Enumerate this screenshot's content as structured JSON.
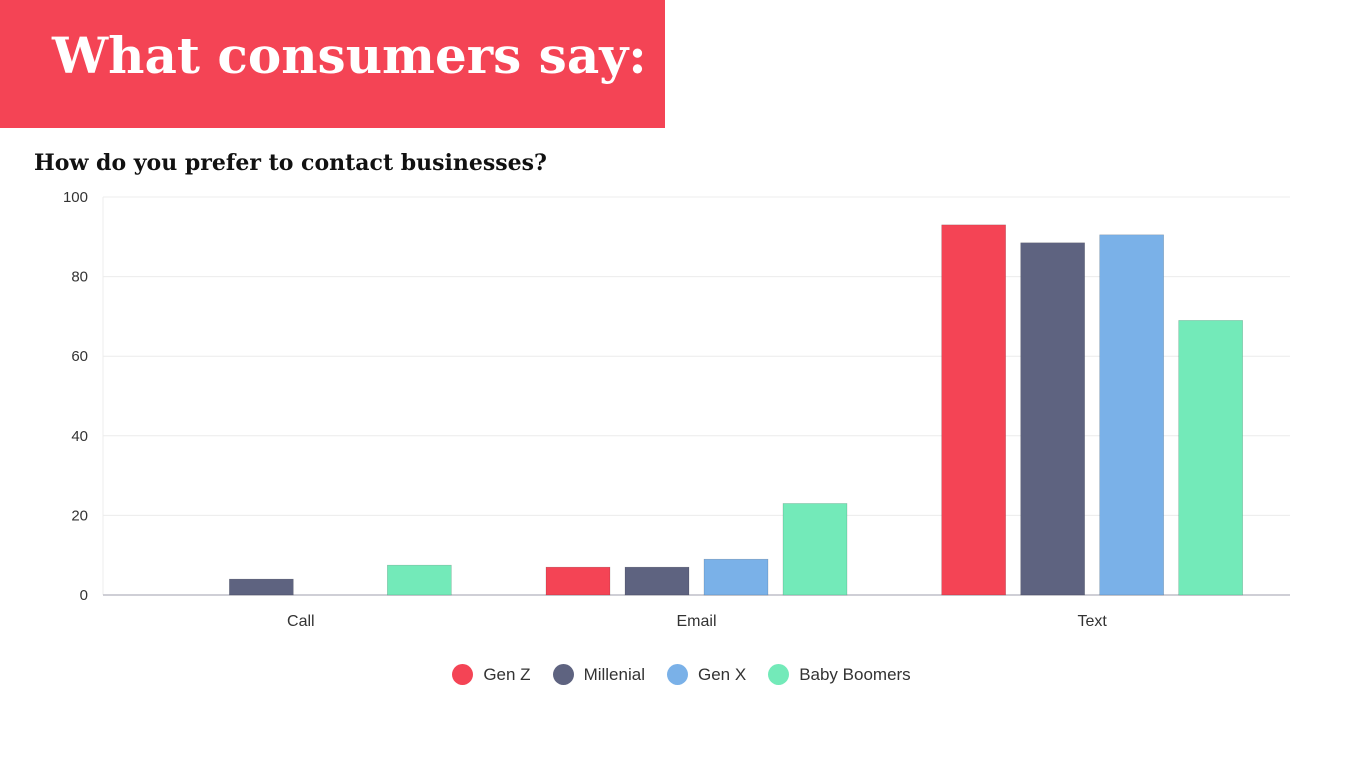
{
  "header": {
    "title": "What consumers say:"
  },
  "colors": {
    "banner": "#f44455",
    "gen_z": "#f44455",
    "millenial": "#5e6380",
    "gen_x": "#7ab1e8",
    "baby_boomers": "#73eab9",
    "gridline": "#ececec",
    "axis": "#bfbfc8"
  },
  "chart_data": {
    "type": "bar",
    "title": "How do you prefer to contact businesses?",
    "xlabel": "",
    "ylabel": "",
    "ylim": [
      0,
      100
    ],
    "yticks": [
      0,
      20,
      40,
      60,
      80,
      100
    ],
    "grid": true,
    "legend_position": "bottom",
    "categories": [
      "Call",
      "Email",
      "Text"
    ],
    "series": [
      {
        "name": "Gen Z",
        "color": "#f44455",
        "values": [
          0,
          7,
          93
        ]
      },
      {
        "name": "Millenial",
        "color": "#5e6380",
        "values": [
          4,
          7,
          88.5
        ]
      },
      {
        "name": "Gen X",
        "color": "#7ab1e8",
        "values": [
          0,
          9,
          90.5
        ]
      },
      {
        "name": "Baby Boomers",
        "color": "#73eab9",
        "values": [
          7.5,
          23,
          69
        ]
      }
    ]
  }
}
